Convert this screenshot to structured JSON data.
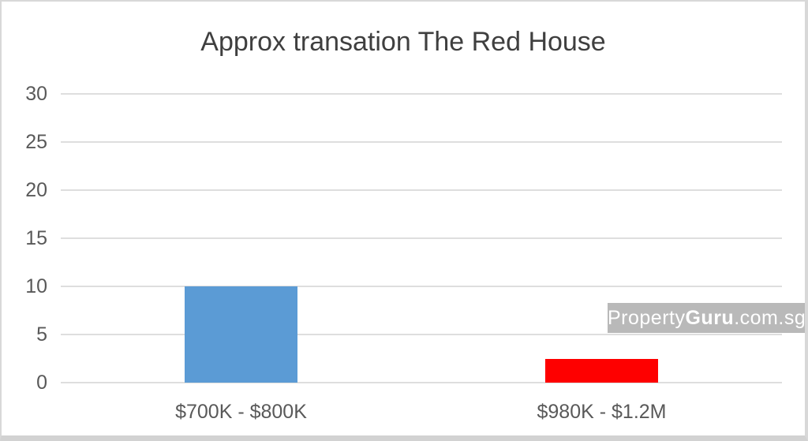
{
  "chart_data": {
    "type": "bar",
    "title": "Approx transation The Red House",
    "categories": [
      "$700K - $800K",
      "$980K - $1.2M"
    ],
    "values": [
      10,
      2.5
    ],
    "bar_colors": [
      "#5b9bd5",
      "#fe0000"
    ],
    "xlabel": "",
    "ylabel": "",
    "ylim": [
      0,
      30
    ],
    "yticks": [
      0,
      5,
      10,
      15,
      20,
      25,
      30
    ],
    "grid": "horizontal",
    "legend_position": "none"
  },
  "watermark": {
    "prefix": "Property",
    "bold": "Guru",
    "suffix": ".com.sg"
  },
  "colors": {
    "bar_blue": "#5b9bd5",
    "bar_red": "#fe0000",
    "gridline": "#dedede",
    "axis_text": "#595959",
    "title_text": "#3f3f3f",
    "watermark_bg": "#b9b9b9",
    "watermark_text": "#ffffff"
  }
}
